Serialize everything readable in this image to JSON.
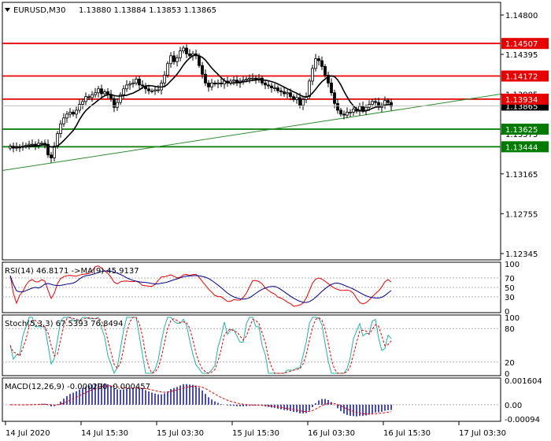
{
  "chart_data": {
    "type": "candlestick",
    "symbol_header": "EURUSD,M30",
    "ohlc_header": "1.13880 1.13884 1.13853 1.13865",
    "current_price_label": "1.13865",
    "price_axis": {
      "ylim": [
        1.1228,
        1.1493
      ],
      "tick_labels": [
        "1.14800",
        "1.14395",
        "1.13985",
        "1.13575",
        "1.13165",
        "1.12755",
        "1.12345"
      ],
      "tick_values": [
        1.148,
        1.14395,
        1.13985,
        1.13575,
        1.13165,
        1.12755,
        1.12345
      ]
    },
    "time_axis": {
      "labels": [
        "14 Jul 2020",
        "14 Jul 15:30",
        "15 Jul 03:30",
        "15 Jul 15:30",
        "16 Jul 03:30",
        "16 Jul 15:30",
        "17 Jul 03:30"
      ],
      "label_bar_index": [
        0,
        24,
        48,
        72,
        96,
        120,
        144
      ]
    },
    "levels": [
      {
        "name": "resistance",
        "value": 1.14507,
        "label": "1.14507",
        "color": "#e60000"
      },
      {
        "name": "resistance",
        "value": 1.14172,
        "label": "1.14172",
        "color": "#e60000"
      },
      {
        "name": "pivot",
        "value": 1.13934,
        "label": "1.13934",
        "color": "#e60000"
      },
      {
        "name": "support",
        "value": 1.13625,
        "label": "1.13625",
        "color": "#007a00"
      },
      {
        "name": "support",
        "value": 1.13444,
        "label": "1.13444",
        "color": "#007a00"
      }
    ],
    "trendline": {
      "start": [
        0,
        1.132
      ],
      "end": [
        152,
        1.1396
      ],
      "color": "#2e8b2e"
    },
    "close_series": [
      1.1345,
      1.1343,
      1.1344,
      1.1344,
      1.1345,
      1.1346,
      1.1347,
      1.1347,
      1.1346,
      1.1348,
      1.1348,
      1.1347,
      1.1336,
      1.1333,
      1.1345,
      1.1358,
      1.1368,
      1.1374,
      1.1378,
      1.138,
      1.1378,
      1.1382,
      1.1388,
      1.1391,
      1.1396,
      1.1395,
      1.1398,
      1.14,
      1.1404,
      1.1399,
      1.1401,
      1.1398,
      1.1394,
      1.1385,
      1.139,
      1.1398,
      1.1404,
      1.1408,
      1.1409,
      1.141,
      1.1414,
      1.1408,
      1.1407,
      1.1404,
      1.1402,
      1.1402,
      1.1403,
      1.1403,
      1.141,
      1.1418,
      1.143,
      1.1438,
      1.1432,
      1.1436,
      1.1443,
      1.1446,
      1.144,
      1.1438,
      1.144,
      1.1438,
      1.1428,
      1.1419,
      1.141,
      1.1406,
      1.141,
      1.1409,
      1.141,
      1.1409,
      1.1412,
      1.141,
      1.1412,
      1.1413,
      1.141,
      1.1412,
      1.1413,
      1.1414,
      1.1415,
      1.1415,
      1.1414,
      1.1415,
      1.141,
      1.1408,
      1.1407,
      1.1405,
      1.1405,
      1.1402,
      1.1401,
      1.1399,
      1.14,
      1.1396,
      1.1393,
      1.1395,
      1.1387,
      1.1393,
      1.1396,
      1.1412,
      1.1425,
      1.1435,
      1.1433,
      1.1427,
      1.1418,
      1.141,
      1.14,
      1.1389,
      1.1382,
      1.1378,
      1.1377,
      1.138,
      1.138,
      1.1383,
      1.1381,
      1.1386,
      1.1382,
      1.1385,
      1.1388,
      1.1391,
      1.139,
      1.1385,
      1.1387,
      1.1392,
      1.139,
      1.1386
    ],
    "close_series_start_bar": 0,
    "indicators": [
      {
        "name": "RSI(14)",
        "header": "RSI(14) 46.8171 ->MA(9) 45.9137",
        "levels": [
          "100",
          "70",
          "50",
          "30",
          "0"
        ],
        "ylim": [
          0,
          100
        ]
      },
      {
        "name": "Stoch(5,3,3)",
        "header": "Stoch(5,3,3) 67.5393 76.8494",
        "levels": [
          "100",
          "80",
          "20",
          "0"
        ],
        "ylim": [
          0,
          100
        ]
      },
      {
        "name": "MACD(12,26,9)",
        "header": "MACD(12,26,9) -0.000290 -0.000457",
        "levels": [
          "0.001604",
          "0.00",
          "-0.00094"
        ],
        "ylim": [
          -0.00094,
          0.001604
        ]
      }
    ]
  },
  "colors": {
    "resistance": "#e60000",
    "support": "#007a00",
    "candle": "#000000",
    "ma": "#000000",
    "grid": "#9c9c9c"
  }
}
